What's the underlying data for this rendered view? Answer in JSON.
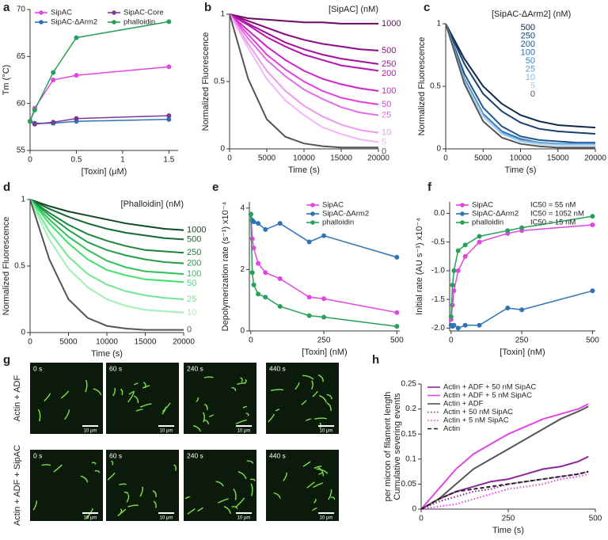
{
  "chart_data": [
    {
      "panel": "a",
      "type": "line",
      "markers": true,
      "xlabel": "[Toxin] (μM)",
      "ylabel": "Tm (°C)",
      "legend": "top",
      "x": [
        0,
        0.05,
        0.25,
        0.5,
        1.5
      ],
      "xlim": [
        0,
        1.6
      ],
      "xticks": [
        0,
        0.5,
        1,
        1.5
      ],
      "ylim": [
        55,
        70
      ],
      "yticks": [
        55,
        60,
        65,
        70
      ],
      "series": [
        {
          "name": "SipAC",
          "color": "#e246e2",
          "values": [
            58.1,
            59.5,
            62.5,
            63.0,
            63.9
          ]
        },
        {
          "name": "SipAC-ΔArm2",
          "color": "#2f73b5",
          "values": [
            58.1,
            57.9,
            57.9,
            58.1,
            58.3
          ]
        },
        {
          "name": "SipAC-Core",
          "color": "#7a3a9a",
          "values": [
            58.1,
            57.8,
            58.0,
            58.4,
            58.7
          ]
        },
        {
          "name": "phalloidin",
          "color": "#26a258",
          "values": [
            58.1,
            59.3,
            63.3,
            67.0,
            68.7
          ]
        }
      ]
    },
    {
      "panel": "b",
      "type": "line",
      "xlabel": "Time (s)",
      "ylabel": "Normalized Fluorescence",
      "legend": "right",
      "legend_title": "[SipAC] (nM)",
      "x": [
        0,
        2500,
        5000,
        7500,
        10000,
        12500,
        15000,
        17500,
        20000
      ],
      "xlim": [
        0,
        20000
      ],
      "xticks": [
        0,
        5000,
        10000,
        15000,
        20000
      ],
      "ylim": [
        0,
        1
      ],
      "yticks": [
        0,
        0.5,
        1
      ],
      "series": [
        {
          "name": "1000",
          "color": "#6a0a62",
          "values": [
            1,
            0.97,
            0.96,
            0.95,
            0.94,
            0.94,
            0.93,
            0.93,
            0.93
          ]
        },
        {
          "name": "500",
          "color": "#8c0c84",
          "values": [
            1,
            0.95,
            0.9,
            0.85,
            0.81,
            0.78,
            0.76,
            0.74,
            0.73
          ]
        },
        {
          "name": "250",
          "color": "#a4109c",
          "values": [
            1,
            0.93,
            0.86,
            0.79,
            0.74,
            0.7,
            0.67,
            0.65,
            0.63
          ]
        },
        {
          "name": "200",
          "color": "#b614b0",
          "values": [
            1,
            0.92,
            0.83,
            0.76,
            0.7,
            0.66,
            0.62,
            0.6,
            0.58
          ]
        },
        {
          "name": "100",
          "color": "#cf22cb",
          "values": [
            1,
            0.88,
            0.76,
            0.66,
            0.58,
            0.52,
            0.48,
            0.45,
            0.43
          ]
        },
        {
          "name": "50",
          "color": "#e040e0",
          "values": [
            1,
            0.85,
            0.7,
            0.59,
            0.5,
            0.43,
            0.38,
            0.35,
            0.33
          ]
        },
        {
          "name": "25",
          "color": "#e36ee3",
          "values": [
            1,
            0.82,
            0.66,
            0.54,
            0.44,
            0.37,
            0.31,
            0.27,
            0.25
          ]
        },
        {
          "name": "10",
          "color": "#ee98ee",
          "values": [
            1,
            0.78,
            0.58,
            0.43,
            0.32,
            0.24,
            0.18,
            0.14,
            0.12
          ]
        },
        {
          "name": "5",
          "color": "#f3b6f3",
          "values": [
            1,
            0.75,
            0.52,
            0.36,
            0.25,
            0.16,
            0.11,
            0.07,
            0.05
          ]
        },
        {
          "name": "0",
          "color": "#555555",
          "values": [
            1,
            0.52,
            0.22,
            0.09,
            0.04,
            0.02,
            0.01,
            0.01,
            0.01
          ]
        }
      ]
    },
    {
      "panel": "c",
      "type": "line",
      "xlabel": "Time (s)",
      "ylabel": "Normalized Fluorescence",
      "legend": "upper-center",
      "legend_title": "[SipAC-ΔArm2] (nM)",
      "x": [
        0,
        2500,
        5000,
        7500,
        10000,
        12500,
        15000,
        17500,
        20000
      ],
      "xlim": [
        0,
        20000
      ],
      "xticks": [
        0,
        5000,
        10000,
        15000,
        20000
      ],
      "ylim": [
        0,
        1
      ],
      "yticks": [
        0,
        0.5,
        1
      ],
      "series": [
        {
          "name": "500",
          "color": "#0e2a4a",
          "values": [
            1,
            0.72,
            0.5,
            0.36,
            0.27,
            0.22,
            0.19,
            0.18,
            0.17
          ]
        },
        {
          "name": "250",
          "color": "#17406e",
          "values": [
            1,
            0.68,
            0.44,
            0.3,
            0.21,
            0.16,
            0.14,
            0.13,
            0.12
          ]
        },
        {
          "name": "200",
          "color": "#1f5690",
          "values": [
            1,
            0.6,
            0.33,
            0.18,
            0.1,
            0.07,
            0.06,
            0.05,
            0.05
          ]
        },
        {
          "name": "100",
          "color": "#2a6cb0",
          "values": [
            1,
            0.56,
            0.28,
            0.14,
            0.08,
            0.05,
            0.04,
            0.04,
            0.04
          ]
        },
        {
          "name": "50",
          "color": "#3b86c8",
          "values": [
            1,
            0.55,
            0.27,
            0.13,
            0.07,
            0.05,
            0.04,
            0.04,
            0.04
          ]
        },
        {
          "name": "25",
          "color": "#5a9fd8",
          "values": [
            1,
            0.55,
            0.27,
            0.13,
            0.07,
            0.05,
            0.04,
            0.04,
            0.04
          ]
        },
        {
          "name": "10",
          "color": "#86bbe4",
          "values": [
            1,
            0.54,
            0.26,
            0.12,
            0.06,
            0.04,
            0.03,
            0.03,
            0.03
          ]
        },
        {
          "name": "5",
          "color": "#a9d0ee",
          "values": [
            1,
            0.54,
            0.26,
            0.12,
            0.06,
            0.04,
            0.03,
            0.03,
            0.03
          ]
        },
        {
          "name": "0",
          "color": "#555555",
          "values": [
            1,
            0.52,
            0.22,
            0.09,
            0.04,
            0.02,
            0.01,
            0.01,
            0.01
          ]
        }
      ]
    },
    {
      "panel": "d",
      "type": "line",
      "xlabel": "Time (s)",
      "ylabel": "Normalized Fluorescence",
      "legend": "right",
      "legend_title": "[Phalloidin] (nM)",
      "x": [
        0,
        2500,
        5000,
        7500,
        10000,
        12500,
        15000,
        17500,
        20000
      ],
      "xlim": [
        0,
        20000
      ],
      "xticks": [
        0,
        5000,
        10000,
        15000,
        20000
      ],
      "ylim": [
        0,
        1
      ],
      "yticks": [
        0,
        0.5,
        1
      ],
      "series": [
        {
          "name": "1000",
          "color": "#0f4a22",
          "values": [
            1,
            0.95,
            0.91,
            0.88,
            0.85,
            0.82,
            0.8,
            0.78,
            0.77
          ]
        },
        {
          "name": "500",
          "color": "#166a30",
          "values": [
            1,
            0.93,
            0.87,
            0.82,
            0.78,
            0.75,
            0.73,
            0.71,
            0.7
          ]
        },
        {
          "name": "250",
          "color": "#1c843b",
          "values": [
            1,
            0.9,
            0.81,
            0.74,
            0.69,
            0.65,
            0.62,
            0.61,
            0.6
          ]
        },
        {
          "name": "200",
          "color": "#22a048",
          "values": [
            1,
            0.88,
            0.77,
            0.68,
            0.62,
            0.58,
            0.55,
            0.53,
            0.52
          ]
        },
        {
          "name": "100",
          "color": "#2cc256",
          "values": [
            1,
            0.85,
            0.72,
            0.62,
            0.54,
            0.49,
            0.46,
            0.45,
            0.44
          ]
        },
        {
          "name": "50",
          "color": "#3fe06a",
          "values": [
            1,
            0.82,
            0.67,
            0.55,
            0.47,
            0.43,
            0.4,
            0.39,
            0.38
          ]
        },
        {
          "name": "25",
          "color": "#6fe890",
          "values": [
            1,
            0.76,
            0.57,
            0.44,
            0.36,
            0.31,
            0.28,
            0.26,
            0.25
          ]
        },
        {
          "name": "10",
          "color": "#a2f0b6",
          "values": [
            1,
            0.7,
            0.48,
            0.34,
            0.25,
            0.2,
            0.17,
            0.16,
            0.15
          ]
        },
        {
          "name": "0",
          "color": "#555555",
          "values": [
            1,
            0.55,
            0.25,
            0.11,
            0.05,
            0.03,
            0.02,
            0.02,
            0.02
          ]
        }
      ]
    },
    {
      "panel": "e",
      "type": "line",
      "markers": true,
      "xlabel": "[Toxin] (nM)",
      "ylabel": "Depolymerization rate (s⁻¹) x10⁻⁴",
      "legend": "upper-right",
      "x": [
        0,
        5,
        10,
        25,
        50,
        100,
        200,
        250,
        500
      ],
      "xlim": [
        -5,
        510
      ],
      "xticks": [
        0,
        250,
        500
      ],
      "ylim": [
        0,
        4.2
      ],
      "yticks": [
        0,
        2,
        4
      ],
      "series": [
        {
          "name": "SipAC",
          "color": "#e246e2",
          "values": [
            3.8,
            3.0,
            2.7,
            2.2,
            1.9,
            1.7,
            1.1,
            1.05,
            0.6
          ]
        },
        {
          "name": "SipAC-ΔArm2",
          "color": "#2f73b5",
          "values": [
            3.8,
            3.6,
            3.55,
            3.5,
            3.3,
            3.5,
            2.9,
            3.1,
            2.4
          ]
        },
        {
          "name": "phalloidin",
          "color": "#26a258",
          "values": [
            3.8,
            1.9,
            1.5,
            1.2,
            1.1,
            0.8,
            0.5,
            0.45,
            0.15
          ]
        }
      ]
    },
    {
      "panel": "f",
      "type": "line",
      "markers": true,
      "xlabel": "[Toxin] (nM)",
      "ylabel": "Initial rate (AU s⁻¹) x10⁻⁴",
      "legend": "upper-left",
      "annotations": [
        "IC50 = 55 nM",
        "IC50 = 1052 nM",
        "IC50 = 15 nM"
      ],
      "x": [
        0,
        5,
        10,
        25,
        50,
        100,
        200,
        250,
        500
      ],
      "xlim": [
        -5,
        510
      ],
      "xticks": [
        0,
        250,
        500
      ],
      "ylim": [
        -2.05,
        0.2
      ],
      "yticks": [
        {
          "value": -2,
          "label": "-2.0"
        },
        -1.5,
        {
          "value": -1,
          "label": "-1.0"
        },
        -0.5,
        {
          "value": 0,
          "label": "0.0"
        }
      ],
      "series": [
        {
          "name": "SipAC",
          "color": "#e246e2",
          "values": [
            -1.85,
            -1.6,
            -1.35,
            -1.0,
            -0.75,
            -0.5,
            -0.35,
            -0.3,
            -0.2
          ]
        },
        {
          "name": "SipAC-ΔArm2",
          "color": "#2f73b5",
          "values": [
            -1.95,
            -1.97,
            -1.95,
            -2.0,
            -1.95,
            -1.95,
            -1.65,
            -1.68,
            -1.35
          ]
        },
        {
          "name": "phalloidin",
          "color": "#26a258",
          "values": [
            -1.8,
            -1.25,
            -1.0,
            -0.65,
            -0.55,
            -0.4,
            -0.3,
            -0.25,
            -0.05
          ]
        }
      ]
    },
    {
      "panel": "h",
      "type": "line",
      "xlabel": "Time (s)",
      "ylabel": [
        "Cumulative severing events",
        "per micron of filament length"
      ],
      "legend": "upper-left",
      "x": [
        0,
        50,
        100,
        150,
        200,
        250,
        300,
        350,
        400,
        450,
        480
      ],
      "xlim": [
        0,
        500
      ],
      "xticks": [
        0,
        250,
        500
      ],
      "ylim": [
        0,
        0.25
      ],
      "yticks": [
        0,
        0.05,
        0.1,
        0.15,
        0.2,
        0.25
      ],
      "series": [
        {
          "name": "Actin + ADF + 50 nM SipAC",
          "color": "#8a2a96",
          "dash": "solid",
          "values": [
            0,
            0.02,
            0.035,
            0.045,
            0.055,
            0.06,
            0.07,
            0.08,
            0.085,
            0.095,
            0.105
          ]
        },
        {
          "name": "Actin + ADF + 5 nM SipAC",
          "color": "#e246e2",
          "dash": "solid",
          "values": [
            0,
            0.04,
            0.08,
            0.11,
            0.13,
            0.15,
            0.165,
            0.18,
            0.19,
            0.2,
            0.21
          ]
        },
        {
          "name": "Actin + ADF",
          "color": "#555555",
          "dash": "solid",
          "values": [
            0,
            0.02,
            0.05,
            0.08,
            0.1,
            0.12,
            0.14,
            0.16,
            0.18,
            0.195,
            0.205
          ]
        },
        {
          "name": "Actin + 50 nM SipAC",
          "color": "#8a2a96",
          "dash": "dotted",
          "values": [
            0,
            0.015,
            0.025,
            0.035,
            0.04,
            0.05,
            0.055,
            0.06,
            0.065,
            0.07,
            0.075
          ]
        },
        {
          "name": "Actin + 5 nM SipAC",
          "color": "#e246e2",
          "dash": "dotted",
          "values": [
            0,
            0.005,
            0.01,
            0.02,
            0.03,
            0.04,
            0.045,
            0.05,
            0.06,
            0.065,
            0.07
          ]
        },
        {
          "name": "Actin",
          "color": "#222222",
          "dash": "dashed",
          "values": [
            0,
            0.02,
            0.035,
            0.04,
            0.045,
            0.05,
            0.055,
            0.06,
            0.065,
            0.07,
            0.075
          ]
        }
      ]
    }
  ],
  "micrographs": {
    "panel": "g",
    "rows": [
      "Actin + ADF",
      "Actin + ADF + SipAC"
    ],
    "times": [
      "0 s",
      "60 s",
      "240 s",
      "440 s"
    ],
    "scale_bar": "10 μm"
  }
}
